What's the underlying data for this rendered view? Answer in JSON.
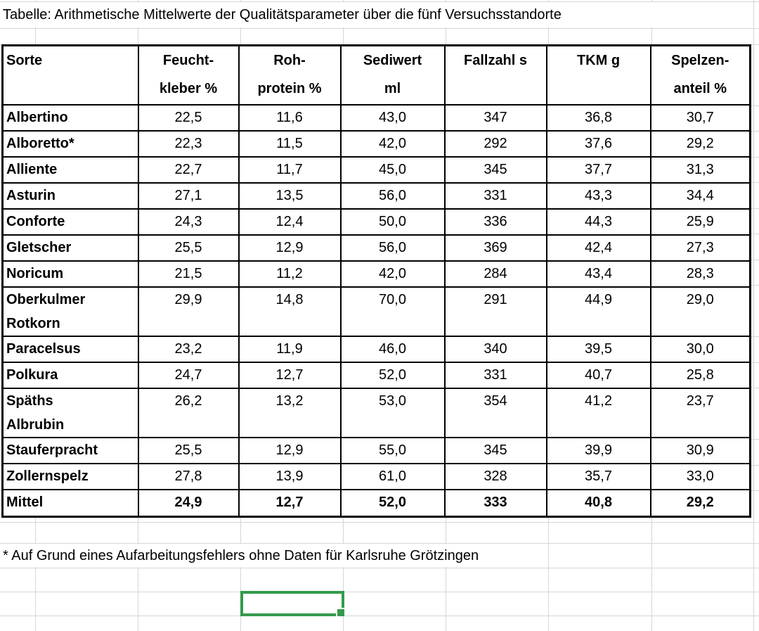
{
  "title": "Tabelle: Arithmetische Mittelwerte der Qualitätsparameter über die fünf Versuchsstandorte",
  "footnote": "* Auf Grund eines Aufarbeitungsfehlers ohne Daten für Karlsruhe Grötzingen",
  "table": {
    "columns": [
      {
        "label": "Sorte"
      },
      {
        "label": "Feucht-\nkleber %"
      },
      {
        "label": "Roh-\nprotein %"
      },
      {
        "label": "Sediwert\nml"
      },
      {
        "label": "Fallzahl s"
      },
      {
        "label": "TKM g"
      },
      {
        "label": "Spelzen-\nanteil %"
      }
    ],
    "rows": [
      {
        "sorte": "Albertino",
        "values": [
          "22,5",
          "11,6",
          "43,0",
          "347",
          "36,8",
          "30,7"
        ],
        "total": false
      },
      {
        "sorte": "Alboretto*",
        "values": [
          "22,3",
          "11,5",
          "42,0",
          "292",
          "37,6",
          "29,2"
        ],
        "total": false
      },
      {
        "sorte": "Alliente",
        "values": [
          "22,7",
          "11,7",
          "45,0",
          "345",
          "37,7",
          "31,3"
        ],
        "total": false
      },
      {
        "sorte": "Asturin",
        "values": [
          "27,1",
          "13,5",
          "56,0",
          "331",
          "43,3",
          "34,4"
        ],
        "total": false
      },
      {
        "sorte": "Conforte",
        "values": [
          "24,3",
          "12,4",
          "50,0",
          "336",
          "44,3",
          "25,9"
        ],
        "total": false
      },
      {
        "sorte": "Gletscher",
        "values": [
          "25,5",
          "12,9",
          "56,0",
          "369",
          "42,4",
          "27,3"
        ],
        "total": false
      },
      {
        "sorte": "Noricum",
        "values": [
          "21,5",
          "11,2",
          "42,0",
          "284",
          "43,4",
          "28,3"
        ],
        "total": false
      },
      {
        "sorte": "Oberkulmer\nRotkorn",
        "values": [
          "29,9",
          "14,8",
          "70,0",
          "291",
          "44,9",
          "29,0"
        ],
        "total": false
      },
      {
        "sorte": "Paracelsus",
        "values": [
          "23,2",
          "11,9",
          "46,0",
          "340",
          "39,5",
          "30,0"
        ],
        "total": false
      },
      {
        "sorte": "Polkura",
        "values": [
          "24,7",
          "12,7",
          "52,0",
          "331",
          "40,7",
          "25,8"
        ],
        "total": false
      },
      {
        "sorte": "Späths\nAlbrubin",
        "values": [
          "26,2",
          "13,2",
          "53,0",
          "354",
          "41,2",
          "23,7"
        ],
        "total": false
      },
      {
        "sorte": "Stauferpracht",
        "values": [
          "25,5",
          "12,9",
          "55,0",
          "345",
          "39,9",
          "30,9"
        ],
        "total": false
      },
      {
        "sorte": "Zollernspelz",
        "values": [
          "27,8",
          "13,9",
          "61,0",
          "328",
          "35,7",
          "33,0"
        ],
        "total": false
      },
      {
        "sorte": "Mittel",
        "values": [
          "24,9",
          "12,7",
          "52,0",
          "333",
          "40,8",
          "29,2"
        ],
        "total": true
      }
    ]
  },
  "colors": {
    "selection_green": "#349a4d",
    "gridline_gray": "#d6d6d8",
    "table_border": "#000000"
  }
}
